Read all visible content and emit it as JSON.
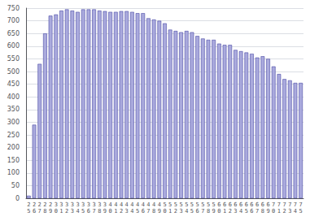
{
  "chart_data": {
    "type": "bar",
    "categories": [
      "2\n5",
      "2\n6",
      "2\n7",
      "2\n8",
      "2\n9",
      "3\n0",
      "3\n1",
      "3\n2",
      "3\n3",
      "3\n4",
      "3\n5",
      "3\n6",
      "3\n7",
      "3\n8",
      "3\n9",
      "4\n0",
      "4\n1",
      "4\n2",
      "4\n3",
      "4\n4",
      "4\n5",
      "4\n6",
      "4\n7",
      "4\n8",
      "4\n9",
      "5\n0",
      "5\n1",
      "5\n2",
      "5\n3",
      "5\n4",
      "5\n5",
      "5\n6",
      "5\n7",
      "5\n8",
      "5\n9",
      "6\n0",
      "6\n1",
      "6\n2",
      "6\n3",
      "6\n4",
      "6\n5",
      "6\n6",
      "6\n7",
      "6\n8",
      "6\n9",
      "7\n0",
      "7\n1",
      "7\n2",
      "7\n3",
      "7\n4",
      "7\n5"
    ],
    "values": [
      10,
      290,
      530,
      650,
      720,
      725,
      740,
      745,
      740,
      735,
      745,
      745,
      745,
      740,
      738,
      735,
      735,
      738,
      738,
      735,
      730,
      730,
      710,
      705,
      700,
      690,
      665,
      660,
      655,
      660,
      655,
      640,
      630,
      625,
      625,
      610,
      605,
      605,
      585,
      580,
      575,
      570,
      555,
      560,
      550,
      520,
      490,
      470,
      465,
      455,
      455
    ],
    "color": "#aaaadd",
    "ylim": [
      0,
      750
    ],
    "yticks": [
      0,
      50,
      100,
      150,
      200,
      250,
      300,
      350,
      400,
      450,
      500,
      550,
      600,
      650,
      700,
      750
    ],
    "grid": true
  }
}
